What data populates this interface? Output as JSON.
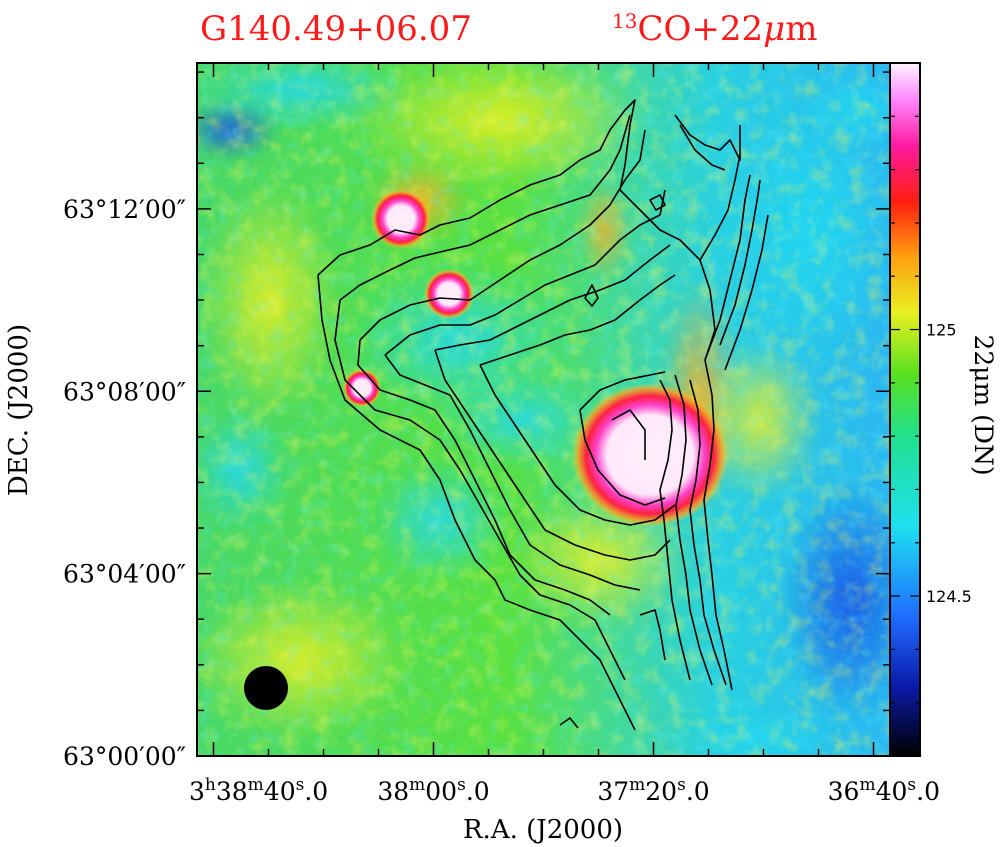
{
  "chart_data": {
    "type": "heatmap",
    "title": "G140.49+06.07",
    "subtitle_sup": "13",
    "subtitle_main": "CO+22",
    "subtitle_mu": "μ",
    "subtitle_end": "m",
    "xlabel": "R.A.  (J2000)",
    "ylabel": "DEC.  (J2000)",
    "colorbar_label": "22μm  (DN)",
    "colorbar_ticks": [
      {
        "value": 124.5,
        "label": "124.5"
      },
      {
        "value": 125,
        "label": "125"
      }
    ],
    "colorbar_range": [
      124.2,
      125.5
    ],
    "x_ticks": [
      {
        "h": "3",
        "m": "38",
        "s": "40",
        "frac": ".0",
        "show_h": true,
        "show_m": true
      },
      {
        "h": "",
        "m": "38",
        "s": "00",
        "frac": ".0",
        "show_h": false,
        "show_m": true
      },
      {
        "h": "",
        "m": "37",
        "s": "20",
        "frac": ".0",
        "show_h": false,
        "show_m": true
      },
      {
        "h": "",
        "m": "36",
        "s": "40",
        "frac": ".0",
        "show_h": false,
        "show_m": true
      }
    ],
    "x_tick_seconds": [
      0,
      40,
      80,
      120
    ],
    "x_range_seconds": [
      -3,
      123
    ],
    "y_ticks": [
      "63°00′00″",
      "63°04′00″",
      "63°08′00″",
      "63°12′00″"
    ],
    "y_tick_minutes": [
      0,
      4,
      8,
      12
    ],
    "y_range_minutes": [
      0,
      15.2
    ],
    "contour_source": "13CO",
    "image_source": "22μm",
    "beam": "filled circle, lower-left"
  }
}
